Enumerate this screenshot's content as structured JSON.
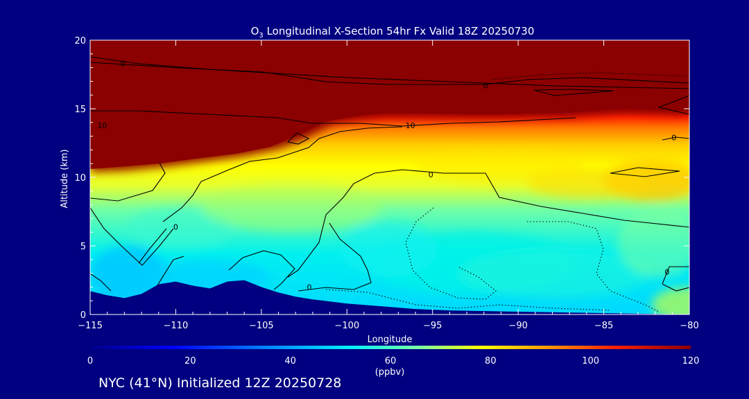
{
  "chart_data": {
    "type": "heatmap",
    "title_prefix": "O",
    "title_subscript": "3",
    "title_rest": " Longitudinal X-Section 54hr  Fx Valid 18Z 20250730",
    "xlabel": "Longitude",
    "ylabel": "Altitude (km)",
    "xlim": [
      -115,
      -80
    ],
    "ylim": [
      0,
      20
    ],
    "x_ticks": [
      -115,
      -110,
      -105,
      -100,
      -95,
      -90,
      -85,
      -80
    ],
    "x_tick_labels": [
      "−115",
      "−110",
      "−105",
      "−100",
      "−95",
      "−90",
      "−85",
      "−80"
    ],
    "y_ticks": [
      0,
      5,
      10,
      15,
      20
    ],
    "y_tick_labels": [
      "0",
      "5",
      "10",
      "15",
      "20"
    ],
    "colorbar": {
      "min": 0,
      "max": 120,
      "ticks": [
        0,
        20,
        40,
        60,
        80,
        100,
        120
      ],
      "tick_labels": [
        "0",
        "20",
        "40",
        "60",
        "80",
        "100",
        "120"
      ],
      "unit": "(ppbv)",
      "colors": [
        "#00008a",
        "#0000ff",
        "#0080ff",
        "#00eeff",
        "#7dffa0",
        "#ffff00",
        "#ff9a00",
        "#ff2200",
        "#8b0000"
      ]
    },
    "contour_labels": [
      {
        "text": "0",
        "x": -113.1,
        "y": 18.3
      },
      {
        "text": "0",
        "x": -91.9,
        "y": 16.7
      },
      {
        "text": "10",
        "x": -114.3,
        "y": 13.8
      },
      {
        "text": "10",
        "x": -96.3,
        "y": 13.8
      },
      {
        "text": "0",
        "x": -80.9,
        "y": 12.9
      },
      {
        "text": "0",
        "x": -95.1,
        "y": 10.2
      },
      {
        "text": "0",
        "x": -110.0,
        "y": 6.4
      },
      {
        "text": "0",
        "x": -102.2,
        "y": 2.0
      },
      {
        "text": "0",
        "x": -81.3,
        "y": 3.1
      }
    ],
    "terrain_altitude": [
      {
        "x": -115,
        "y": 1.7
      },
      {
        "x": -114,
        "y": 1.4
      },
      {
        "x": -113,
        "y": 1.2
      },
      {
        "x": -112,
        "y": 1.5
      },
      {
        "x": -111,
        "y": 2.2
      },
      {
        "x": -110,
        "y": 2.4
      },
      {
        "x": -109,
        "y": 2.1
      },
      {
        "x": -108,
        "y": 1.9
      },
      {
        "x": -107,
        "y": 2.4
      },
      {
        "x": -106,
        "y": 2.5
      },
      {
        "x": -105,
        "y": 2.0
      },
      {
        "x": -104,
        "y": 1.6
      },
      {
        "x": -103,
        "y": 1.3
      },
      {
        "x": -102,
        "y": 1.1
      },
      {
        "x": -100,
        "y": 0.8
      },
      {
        "x": -98,
        "y": 0.6
      },
      {
        "x": -96,
        "y": 0.4
      },
      {
        "x": -94,
        "y": 0.3
      },
      {
        "x": -90,
        "y": 0.2
      },
      {
        "x": -85,
        "y": 0.1
      },
      {
        "x": -80,
        "y": 0.0
      }
    ]
  },
  "footer": "NYC (41°N) Initialized 12Z 20250728"
}
